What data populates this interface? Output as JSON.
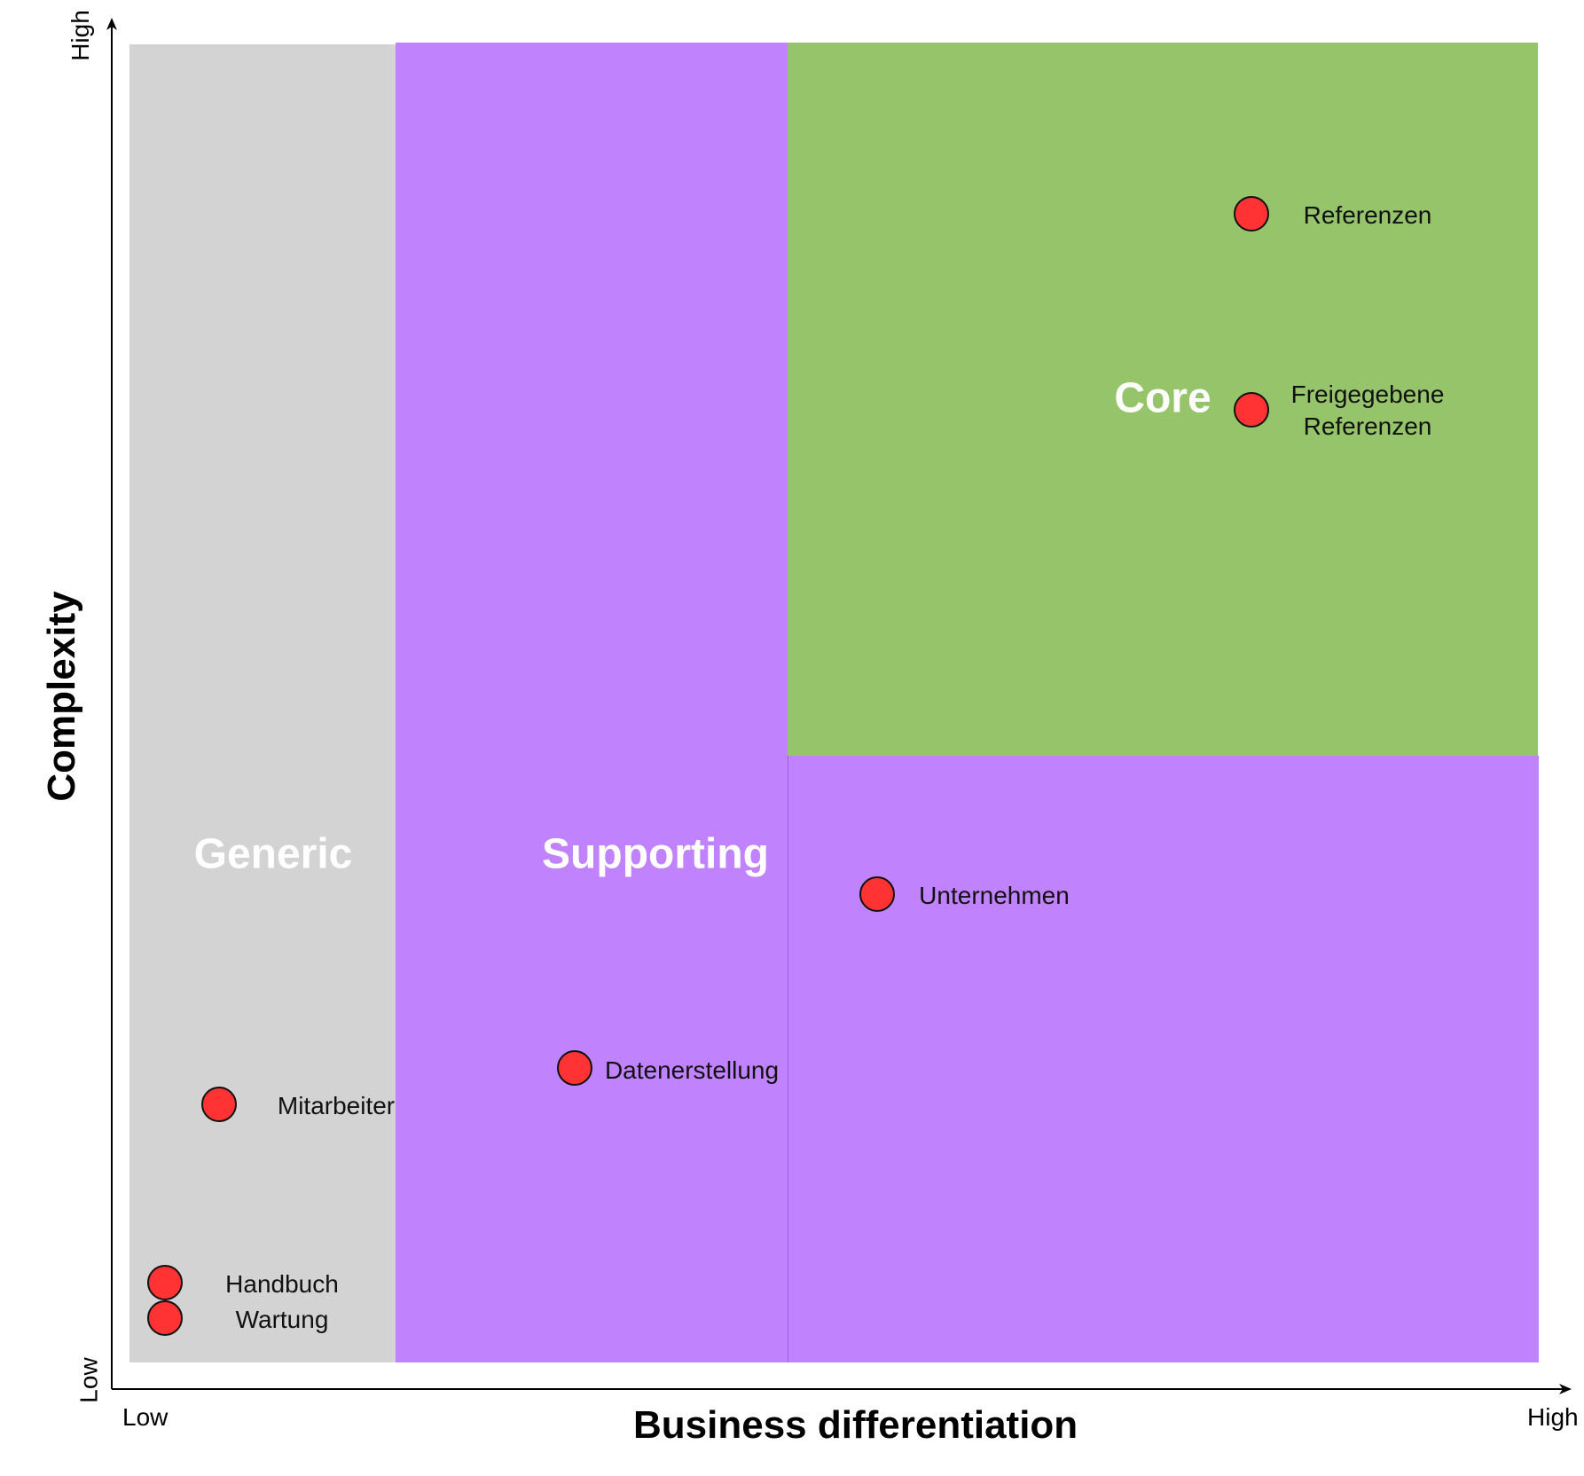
{
  "axes": {
    "x_title": "Business differentiation",
    "y_title": "Complexity",
    "x_low": "Low",
    "x_high": "High",
    "y_low": "Low",
    "y_high": "High"
  },
  "regions": {
    "generic": {
      "label": "Generic",
      "color": "#d3d3d3"
    },
    "supporting": {
      "label": "Supporting",
      "color": "#c183fd"
    },
    "core": {
      "label": "Core",
      "color": "#96c46a"
    }
  },
  "points": [
    {
      "label": "Referenzen"
    },
    {
      "label": "Freigegebene\nReferenzen"
    },
    {
      "label": "Unternehmen"
    },
    {
      "label": "Datenerstellung"
    },
    {
      "label": "Mitarbeiter"
    },
    {
      "label": "Handbuch"
    },
    {
      "label": "Wartung"
    }
  ],
  "colors": {
    "point_fill": "#ff3333",
    "point_stroke": "#111111"
  }
}
